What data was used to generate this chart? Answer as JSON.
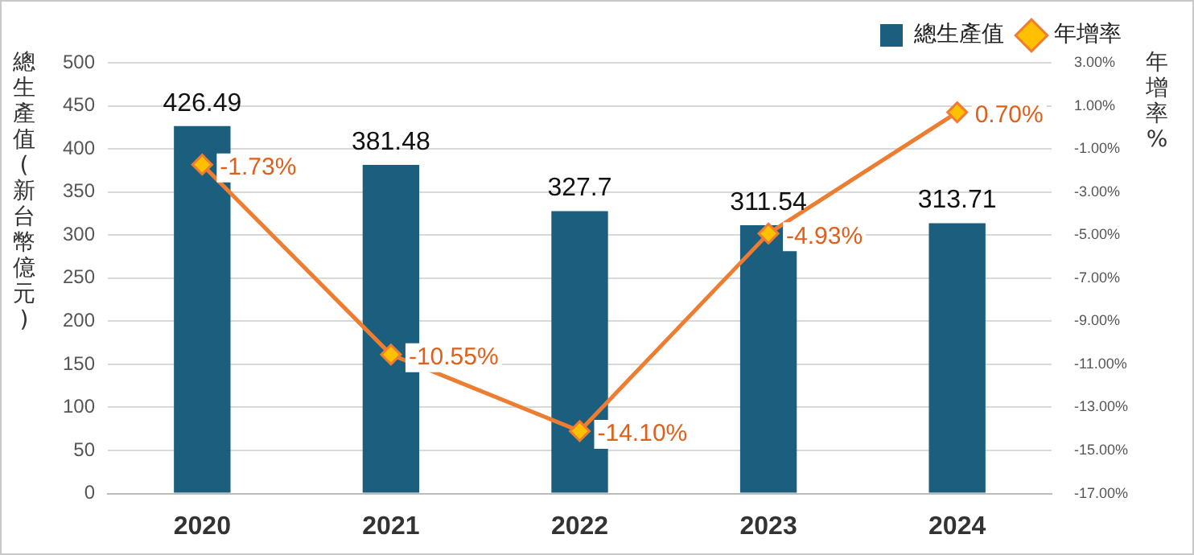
{
  "chart_data": {
    "type": "bar",
    "ylabel": "總生產值(新台幣億元)",
    "y2label": "年增率%",
    "categories": [
      "2020",
      "2021",
      "2022",
      "2023",
      "2024"
    ],
    "series": [
      {
        "name": "總生產值",
        "color": "#1b5e7e",
        "values": [
          426.49,
          381.48,
          327.7,
          311.54,
          313.71
        ],
        "value_labels": [
          "426.49",
          "381.48",
          "327.7",
          "311.54",
          "313.71"
        ]
      },
      {
        "name": "年增率",
        "type": "line",
        "axis": "y2",
        "color": "#ed7d31",
        "values": [
          -1.73,
          -10.55,
          -14.1,
          -4.93,
          0.7
        ],
        "value_labels": [
          "-1.73%",
          "-10.55%",
          "-14.10%",
          "-4.93%",
          "0.70%"
        ]
      }
    ],
    "ylim": [
      0,
      500
    ],
    "yticks": [
      0,
      50,
      100,
      150,
      200,
      250,
      300,
      350,
      400,
      450,
      500
    ],
    "y2lim": [
      -17,
      3
    ],
    "y2ticks": [
      {
        "value": -17,
        "label": "-17.00%"
      },
      {
        "value": -15,
        "label": "-15.00%"
      },
      {
        "value": -13,
        "label": "-13.00%"
      },
      {
        "value": -11,
        "label": "-11.00%"
      },
      {
        "value": -9,
        "label": "-9.00%"
      },
      {
        "value": -7,
        "label": "-7.00%"
      },
      {
        "value": -5,
        "label": "-5.00%"
      },
      {
        "value": -3,
        "label": "-3.00%"
      },
      {
        "value": -1,
        "label": "-1.00%"
      },
      {
        "value": 1,
        "label": "1.00%"
      },
      {
        "value": 3,
        "label": "3.00%"
      }
    ],
    "grid": "y",
    "legend": "top right",
    "marker": "diamond",
    "line_style": "solid"
  }
}
